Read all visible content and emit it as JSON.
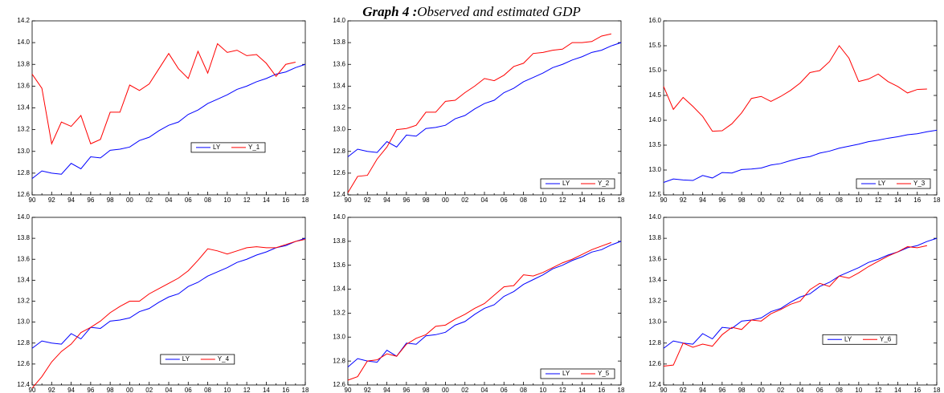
{
  "figure_number": "Graph 4 :",
  "title": "Observed and estimated GDP",
  "chart_data": [
    {
      "type": "line",
      "categories": [
        "90",
        null,
        "92",
        null,
        "94",
        null,
        "96",
        null,
        "98",
        null,
        "00",
        null,
        "02",
        null,
        "04",
        null,
        "06",
        null,
        "08",
        null,
        "10",
        null,
        "12",
        null,
        "14",
        null,
        "16",
        null,
        "18"
      ],
      "ylim": [
        12.6,
        14.2
      ],
      "yticks": [
        12.6,
        12.8,
        {
          "value": 13,
          "label": "13.0"
        },
        13.2,
        13.4,
        13.6,
        13.8,
        {
          "value": 14,
          "label": "14.0"
        },
        14.2
      ],
      "legend": "center right",
      "series": [
        {
          "name": "LY",
          "color": "#0000ff",
          "values": [
            12.75,
            12.82,
            12.8,
            12.79,
            12.89,
            12.84,
            12.95,
            12.94,
            13.01,
            13.02,
            13.04,
            13.1,
            13.13,
            13.19,
            13.24,
            13.27,
            13.34,
            13.38,
            13.44,
            13.48,
            13.52,
            13.57,
            13.6,
            13.64,
            13.67,
            13.71,
            13.73,
            13.77,
            13.8
          ]
        },
        {
          "name": "Y_1",
          "color": "#ff0000",
          "values": [
            13.71,
            13.58,
            13.07,
            13.27,
            13.23,
            13.33,
            13.07,
            13.11,
            13.36,
            13.36,
            13.61,
            13.56,
            13.62,
            13.76,
            13.9,
            13.76,
            13.67,
            13.92,
            13.72,
            13.99,
            13.91,
            13.93,
            13.88,
            13.89,
            13.81,
            13.69,
            13.8,
            13.82,
            null
          ]
        }
      ]
    },
    {
      "type": "line",
      "categories": [
        "90",
        null,
        "92",
        null,
        "94",
        null,
        "96",
        null,
        "98",
        null,
        "00",
        null,
        "02",
        null,
        "04",
        null,
        "06",
        null,
        "08",
        null,
        "10",
        null,
        "12",
        null,
        "14",
        null,
        "16",
        null,
        "18"
      ],
      "ylim": [
        12.4,
        14.0
      ],
      "yticks": [
        12.4,
        12.6,
        12.8,
        {
          "value": 13,
          "label": "13.0"
        },
        13.2,
        13.4,
        13.6,
        13.8,
        {
          "value": 14,
          "label": "14.0"
        }
      ],
      "legend": "lower right",
      "series": [
        {
          "name": "LY",
          "color": "#0000ff",
          "values": [
            12.75,
            12.82,
            12.8,
            12.79,
            12.89,
            12.84,
            12.95,
            12.94,
            13.01,
            13.02,
            13.04,
            13.1,
            13.13,
            13.19,
            13.24,
            13.27,
            13.34,
            13.38,
            13.44,
            13.48,
            13.52,
            13.57,
            13.6,
            13.64,
            13.67,
            13.71,
            13.73,
            13.77,
            13.8
          ]
        },
        {
          "name": "Y_2",
          "color": "#ff0000",
          "values": [
            12.42,
            12.57,
            12.58,
            12.73,
            12.84,
            13.0,
            13.01,
            13.04,
            13.16,
            13.16,
            13.26,
            13.27,
            13.34,
            13.4,
            13.47,
            13.45,
            13.5,
            13.58,
            13.61,
            13.7,
            13.71,
            13.73,
            13.74,
            13.8,
            13.8,
            13.81,
            13.86,
            13.88,
            null
          ]
        }
      ]
    },
    {
      "type": "line",
      "categories": [
        "90",
        null,
        "92",
        null,
        "94",
        null,
        "96",
        null,
        "98",
        null,
        "00",
        null,
        "02",
        null,
        "04",
        null,
        "06",
        null,
        "08",
        null,
        "10",
        null,
        "12",
        null,
        "14",
        null,
        "16",
        null,
        "18"
      ],
      "ylim": [
        12.5,
        16.0
      ],
      "yticks": [
        12.5,
        {
          "value": 13,
          "label": "13.0"
        },
        13.5,
        {
          "value": 14,
          "label": "14.0"
        },
        14.5,
        {
          "value": 15,
          "label": "15.0"
        },
        15.5,
        {
          "value": 16,
          "label": "16.0"
        }
      ],
      "legend": "lower right",
      "series": [
        {
          "name": "LY",
          "color": "#0000ff",
          "values": [
            12.75,
            12.82,
            12.8,
            12.79,
            12.89,
            12.84,
            12.95,
            12.94,
            13.01,
            13.02,
            13.04,
            13.1,
            13.13,
            13.19,
            13.24,
            13.27,
            13.34,
            13.38,
            13.44,
            13.48,
            13.52,
            13.57,
            13.6,
            13.64,
            13.67,
            13.71,
            13.73,
            13.77,
            13.8
          ]
        },
        {
          "name": "Y_3",
          "color": "#ff0000",
          "values": [
            14.68,
            14.22,
            14.46,
            14.28,
            14.08,
            13.78,
            13.79,
            13.93,
            14.15,
            14.44,
            14.48,
            14.38,
            14.48,
            14.6,
            14.75,
            14.96,
            15.0,
            15.18,
            15.5,
            15.25,
            14.78,
            14.83,
            14.93,
            14.78,
            14.68,
            14.55,
            14.62,
            14.63,
            null
          ]
        }
      ]
    },
    {
      "type": "line",
      "categories": [
        "90",
        null,
        "92",
        null,
        "94",
        null,
        "96",
        null,
        "98",
        null,
        "00",
        null,
        "02",
        null,
        "04",
        null,
        "06",
        null,
        "08",
        null,
        "10",
        null,
        "12",
        null,
        "14",
        null,
        "16",
        null,
        "18"
      ],
      "ylim": [
        12.4,
        14.0
      ],
      "yticks": [
        12.4,
        12.6,
        12.8,
        {
          "value": 13,
          "label": "13.0"
        },
        13.2,
        13.4,
        13.6,
        13.8,
        {
          "value": 14,
          "label": "14.0"
        }
      ],
      "legend": "lower center",
      "series": [
        {
          "name": "LY",
          "color": "#0000ff",
          "values": [
            12.75,
            12.82,
            12.8,
            12.79,
            12.89,
            12.84,
            12.95,
            12.94,
            13.01,
            13.02,
            13.04,
            13.1,
            13.13,
            13.19,
            13.24,
            13.27,
            13.34,
            13.38,
            13.44,
            13.48,
            13.52,
            13.57,
            13.6,
            13.64,
            13.67,
            13.71,
            13.73,
            13.77,
            13.8
          ]
        },
        {
          "name": "Y_4",
          "color": "#ff0000",
          "values": [
            12.37,
            12.48,
            12.62,
            12.72,
            12.79,
            12.9,
            12.95,
            13.01,
            13.09,
            13.15,
            13.2,
            13.2,
            13.27,
            13.32,
            13.37,
            13.42,
            13.49,
            13.59,
            13.7,
            13.68,
            13.65,
            13.68,
            13.71,
            13.72,
            13.71,
            13.71,
            13.74,
            13.77,
            13.79
          ]
        }
      ]
    },
    {
      "type": "line",
      "categories": [
        "90",
        null,
        "92",
        null,
        "94",
        null,
        "96",
        null,
        "98",
        null,
        "00",
        null,
        "02",
        null,
        "04",
        null,
        "06",
        null,
        "08",
        null,
        "10",
        null,
        "12",
        null,
        "14",
        null,
        "16",
        null,
        "18"
      ],
      "ylim": [
        12.6,
        14.0
      ],
      "yticks": [
        12.6,
        12.8,
        {
          "value": 13,
          "label": "13.0"
        },
        13.2,
        13.4,
        13.6,
        13.8,
        {
          "value": 14,
          "label": "14.0"
        }
      ],
      "legend": "lower right",
      "series": [
        {
          "name": "LY",
          "color": "#0000ff",
          "values": [
            12.75,
            12.82,
            12.8,
            12.79,
            12.89,
            12.84,
            12.95,
            12.94,
            13.01,
            13.02,
            13.04,
            13.1,
            13.13,
            13.19,
            13.24,
            13.27,
            13.34,
            13.38,
            13.44,
            13.48,
            13.52,
            13.57,
            13.6,
            13.64,
            13.67,
            13.71,
            13.73,
            13.77,
            13.8
          ]
        },
        {
          "name": "Y_5",
          "color": "#ff0000",
          "values": [
            12.64,
            12.67,
            12.8,
            12.81,
            12.86,
            12.84,
            12.94,
            12.99,
            13.02,
            13.09,
            13.1,
            13.15,
            13.19,
            13.24,
            13.28,
            13.35,
            13.42,
            13.43,
            13.52,
            13.51,
            13.54,
            13.58,
            13.62,
            13.65,
            13.69,
            13.73,
            13.76,
            13.79,
            null
          ]
        }
      ]
    },
    {
      "type": "line",
      "categories": [
        "90",
        null,
        "92",
        null,
        "94",
        null,
        "96",
        null,
        "98",
        null,
        "00",
        null,
        "02",
        null,
        "04",
        null,
        "06",
        null,
        "08",
        null,
        "10",
        null,
        "12",
        null,
        "14",
        null,
        "16",
        null,
        "18"
      ],
      "ylim": [
        12.4,
        14.0
      ],
      "yticks": [
        12.4,
        12.6,
        12.8,
        {
          "value": 13,
          "label": "13.0"
        },
        13.2,
        13.4,
        13.6,
        13.8,
        {
          "value": 14,
          "label": "14.0"
        }
      ],
      "legend": "center right",
      "series": [
        {
          "name": "LY",
          "color": "#0000ff",
          "values": [
            12.75,
            12.82,
            12.8,
            12.79,
            12.89,
            12.84,
            12.95,
            12.94,
            13.01,
            13.02,
            13.04,
            13.1,
            13.13,
            13.19,
            13.24,
            13.27,
            13.34,
            13.38,
            13.44,
            13.48,
            13.52,
            13.57,
            13.6,
            13.64,
            13.67,
            13.71,
            13.73,
            13.77,
            13.8
          ]
        },
        {
          "name": "Y_6",
          "color": "#ff0000",
          "values": [
            12.58,
            12.59,
            12.8,
            12.76,
            12.79,
            12.77,
            12.88,
            12.95,
            12.93,
            13.02,
            13.01,
            13.08,
            13.12,
            13.17,
            13.2,
            13.31,
            13.37,
            13.34,
            13.44,
            13.42,
            13.47,
            13.53,
            13.58,
            13.63,
            13.67,
            13.72,
            13.71,
            13.73,
            null
          ]
        }
      ]
    }
  ]
}
